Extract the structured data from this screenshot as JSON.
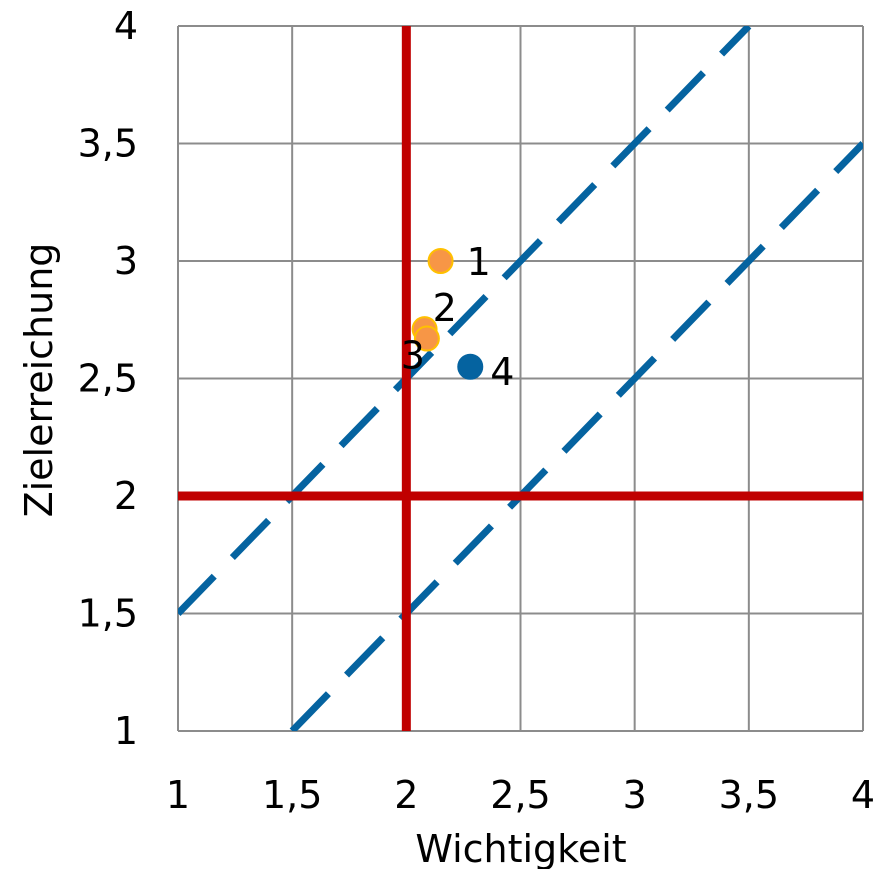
{
  "chart_data": {
    "type": "scatter",
    "xlabel": "Wichtigkeit",
    "ylabel": "Zielerreichung",
    "xlim": [
      1,
      4
    ],
    "ylim": [
      1,
      4
    ],
    "x_ticks": [
      "1",
      "1,5",
      "2",
      "2,5",
      "3",
      "3,5",
      "4"
    ],
    "y_ticks": [
      "1",
      "1,5",
      "2",
      "2,5",
      "3",
      "3,5",
      "4"
    ],
    "grid": true,
    "points": [
      {
        "label": "1",
        "x": 2.15,
        "y": 3.0,
        "color": "#F79646"
      },
      {
        "label": "2",
        "x": 2.08,
        "y": 2.71,
        "color": "#F79646"
      },
      {
        "label": "3",
        "x": 2.09,
        "y": 2.67,
        "color": "#F79646"
      },
      {
        "label": "4",
        "x": 2.28,
        "y": 2.55,
        "color": "#0563A0"
      }
    ],
    "reference_lines": [
      {
        "orientation": "vertical",
        "value": 2,
        "color": "#C00000"
      },
      {
        "orientation": "horizontal",
        "value": 2,
        "color": "#C00000"
      }
    ],
    "diagonal_lines": [
      {
        "from": [
          1,
          1.5
        ],
        "to": [
          3.5,
          4
        ],
        "color": "#0563A0",
        "style": "dashed"
      },
      {
        "from": [
          1.5,
          1
        ],
        "to": [
          4,
          3.5
        ],
        "color": "#0563A0",
        "style": "dashed"
      }
    ]
  }
}
